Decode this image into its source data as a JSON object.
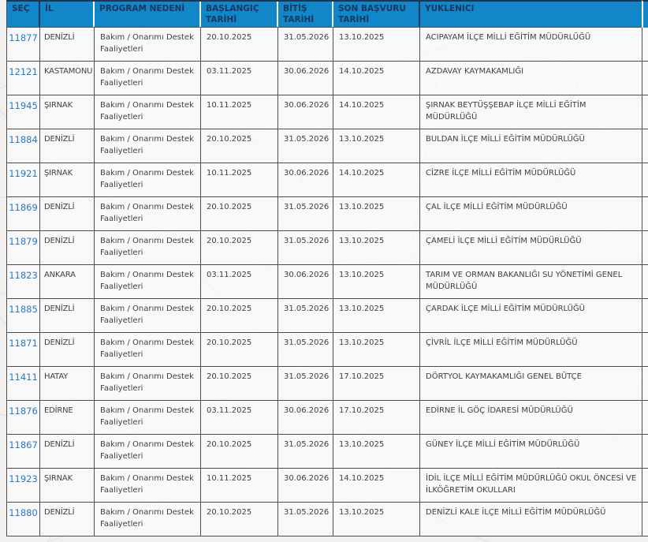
{
  "colors": {
    "header_bg": "#1186c8",
    "header_text": "#17375c",
    "link": "#2878c8",
    "grid_border": "#4d4d4d",
    "body_text": "#404040",
    "page_bg": "#f1f0ef"
  },
  "table": {
    "columns": [
      {
        "key": "sec",
        "label": "SEÇ"
      },
      {
        "key": "il",
        "label": "İL"
      },
      {
        "key": "program",
        "label": "PROGRAM NEDENİ"
      },
      {
        "key": "baslangic",
        "label": "BAŞLANGIÇ\nTARİHİ"
      },
      {
        "key": "bitis",
        "label": "BİTİŞ\nTARİHİ"
      },
      {
        "key": "son_basvuru",
        "label": "SON BAŞVURU\nTARİHİ"
      },
      {
        "key": "yuklenici",
        "label": "YUKLENICI"
      }
    ],
    "rows": [
      {
        "sec": "11877",
        "il": "DENİZLİ",
        "program": "Bakım / Onarımı Destek\nFaaliyetleri",
        "baslangic": "20.10.2025",
        "bitis": "31.05.2026",
        "son_basvuru": "13.10.2025",
        "yuklenici": "ACIPAYAM İLÇE MİLLİ EĞİTİM MÜDÜRLÜĞÜ"
      },
      {
        "sec": "12121",
        "il": "KASTAMONU",
        "program": "Bakım / Onarımı Destek\nFaaliyetleri",
        "baslangic": "03.11.2025",
        "bitis": "30.06.2026",
        "son_basvuru": "14.10.2025",
        "yuklenici": "AZDAVAY KAYMAKAMLIĞI"
      },
      {
        "sec": "11945",
        "il": "ŞIRNAK",
        "program": "Bakım / Onarımı Destek\nFaaliyetleri",
        "baslangic": "10.11.2025",
        "bitis": "30.06.2026",
        "son_basvuru": "14.10.2025",
        "yuklenici": "ŞIRNAK BEYTÜŞŞEBAP İLÇE MİLLİ EĞİTİM MÜDÜRLÜĞÜ"
      },
      {
        "sec": "11884",
        "il": "DENİZLİ",
        "program": "Bakım / Onarımı Destek\nFaaliyetleri",
        "baslangic": "20.10.2025",
        "bitis": "31.05.2026",
        "son_basvuru": "13.10.2025",
        "yuklenici": "BULDAN İLÇE MİLLİ EĞİTİM MÜDÜRLÜĞÜ"
      },
      {
        "sec": "11921",
        "il": "ŞIRNAK",
        "program": "Bakım / Onarımı Destek\nFaaliyetleri",
        "baslangic": "10.11.2025",
        "bitis": "30.06.2026",
        "son_basvuru": "14.10.2025",
        "yuklenici": "CİZRE İLÇE MİLLİ EĞİTİM MÜDÜRLÜĞÜ"
      },
      {
        "sec": "11869",
        "il": "DENİZLİ",
        "program": "Bakım / Onarımı Destek\nFaaliyetleri",
        "baslangic": "20.10.2025",
        "bitis": "31.05.2026",
        "son_basvuru": "13.10.2025",
        "yuklenici": "ÇAL İLÇE MİLLİ EĞİTİM MÜDÜRLÜĞÜ"
      },
      {
        "sec": "11879",
        "il": "DENİZLİ",
        "program": "Bakım / Onarımı Destek\nFaaliyetleri",
        "baslangic": "20.10.2025",
        "bitis": "31.05.2026",
        "son_basvuru": "13.10.2025",
        "yuklenici": "ÇAMELİ İLÇE MİLLİ EĞİTİM MÜDÜRLÜĞÜ"
      },
      {
        "sec": "11823",
        "il": "ANKARA",
        "program": "Bakım / Onarımı Destek\nFaaliyetleri",
        "baslangic": "03.11.2025",
        "bitis": "30.06.2026",
        "son_basvuru": "13.10.2025",
        "yuklenici": "TARIM VE ORMAN BAKANLIĞI SU YÖNETİMİ GENEL MÜDÜRLÜĞÜ"
      },
      {
        "sec": "11885",
        "il": "DENİZLİ",
        "program": "Bakım / Onarımı Destek\nFaaliyetleri",
        "baslangic": "20.10.2025",
        "bitis": "31.05.2026",
        "son_basvuru": "13.10.2025",
        "yuklenici": "ÇARDAK İLÇE MİLLİ EĞİTİM MÜDÜRLÜĞÜ"
      },
      {
        "sec": "11871",
        "il": "DENİZLİ",
        "program": "Bakım / Onarımı Destek\nFaaliyetleri",
        "baslangic": "20.10.2025",
        "bitis": "31.05.2026",
        "son_basvuru": "13.10.2025",
        "yuklenici": "ÇİVRİL İLÇE MİLLİ EĞİTİM MÜDÜRLÜĞÜ"
      },
      {
        "sec": "11411",
        "il": "HATAY",
        "program": "Bakım / Onarımı Destek\nFaaliyetleri",
        "baslangic": "20.10.2025",
        "bitis": "31.05.2026",
        "son_basvuru": "17.10.2025",
        "yuklenici": "DÖRTYOL KAYMAKAMLIĞI GENEL BÜTÇE"
      },
      {
        "sec": "11876",
        "il": "EDİRNE",
        "program": "Bakım / Onarımı Destek\nFaaliyetleri",
        "baslangic": "03.11.2025",
        "bitis": "30.06.2026",
        "son_basvuru": "17.10.2025",
        "yuklenici": "EDİRNE İL GÖÇ İDARESİ MÜDÜRLÜĞÜ"
      },
      {
        "sec": "11867",
        "il": "DENİZLİ",
        "program": "Bakım / Onarımı Destek\nFaaliyetleri",
        "baslangic": "20.10.2025",
        "bitis": "31.05.2026",
        "son_basvuru": "13.10.2025",
        "yuklenici": "GÜNEY İLÇE MİLLİ EĞİTİM MÜDÜRLÜĞÜ"
      },
      {
        "sec": "11923",
        "il": "ŞIRNAK",
        "program": "Bakım / Onarımı Destek\nFaaliyetleri",
        "baslangic": "10.11.2025",
        "bitis": "30.06.2026",
        "son_basvuru": "14.10.2025",
        "yuklenici": "İDİL İLÇE MİLLİ EĞİTİM MÜDÜRLÜĞÜ OKUL ÖNCESİ VE İLKÖĞRETİM OKULLARI"
      },
      {
        "sec": "11880",
        "il": "DENİZLİ",
        "program": "Bakım / Onarımı Destek\nFaaliyetleri",
        "baslangic": "20.10.2025",
        "bitis": "31.05.2026",
        "son_basvuru": "13.10.2025",
        "yuklenici": "DENİZLİ KALE İLÇE MİLLİ EĞİTİM MÜDÜRLÜĞÜ"
      }
    ]
  }
}
